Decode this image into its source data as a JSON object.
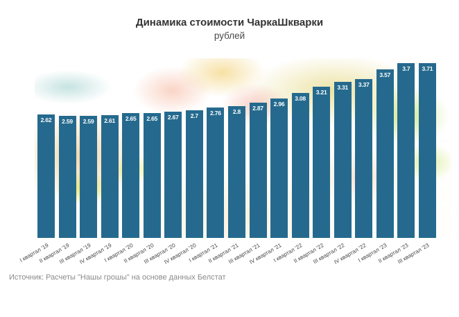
{
  "title": "Динамика стоимости ЧаркаШкварки",
  "subtitle": "рублей",
  "source": "Источник: Расчеты \"Нашы грошы\" на основе данных Белстат",
  "colors": {
    "bar": "#256a8e",
    "bar_value_label": "#ffffff",
    "title_text": "#333333",
    "tick_text": "#444444",
    "source_text": "#8a8a8a"
  },
  "chart_data": {
    "type": "bar",
    "title": "Динамика стоимости ЧаркаШкварки",
    "subtitle": "рублей",
    "categories": [
      "I квартал '19",
      "II квартал '19",
      "III квартал '19",
      "IV квартал '19",
      "I квартал '20",
      "II квартал '20",
      "III квартал '20",
      "IV квартал '20",
      "I квартал '21",
      "II квартал '21",
      "III квартал '21",
      "IV квартал '21",
      "I квартал '22",
      "II квартал '22",
      "III квартал '22",
      "IV квартал '22",
      "I квартал '23",
      "II квартал '23",
      "III квартал '23"
    ],
    "values": [
      2.62,
      2.59,
      2.59,
      2.61,
      2.65,
      2.65,
      2.67,
      2.7,
      2.76,
      2.8,
      2.87,
      2.96,
      3.08,
      3.21,
      3.31,
      3.37,
      3.57,
      3.7,
      3.71
    ],
    "value_labels": [
      "2.62",
      "2.59",
      "2.59",
      "2.61",
      "2.65",
      "2.65",
      "2.67",
      "2.7",
      "2.76",
      "2.8",
      "2.87",
      "2.96",
      "3.08",
      "3.21",
      "3.31",
      "3.37",
      "3.57",
      "3.7",
      "3.71"
    ],
    "ylabel": "рублей",
    "xlabel": "",
    "ylim": [
      0,
      3.9
    ],
    "grid": false,
    "legend": null,
    "value_label_position": "inside-top",
    "xtick_rotation_deg": 30,
    "source_note": "Источник: Расчеты \"Нашы грошы\" на основе данных Белстат"
  }
}
